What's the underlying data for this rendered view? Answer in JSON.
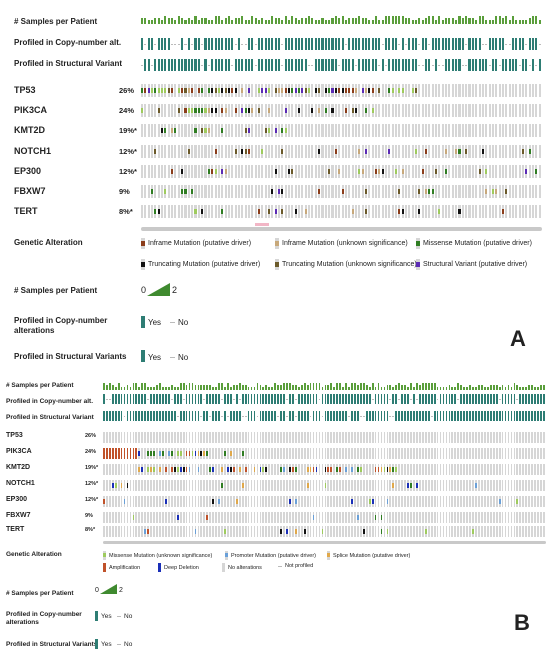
{
  "colors": {
    "profiled": "#2e7d74",
    "not_profiled": "#bbbbbb",
    "no_alteration": "#d6d6d6",
    "samples_bar": "#5a9e3b",
    "missense_driver": "#2f7d22",
    "missense_unknown": "#9ecb5d",
    "truncating_driver": "#111111",
    "truncating_unknown": "#6b5a2a",
    "inframe_driver": "#8b3d1a",
    "inframe_unknown": "#c7a87a",
    "structural_variant": "#5b2bb5",
    "amplification": "#c0522a",
    "deep_deletion": "#1a2fb8",
    "promoter": "#6aa0d8",
    "splice": "#e0a84a"
  },
  "panelA": {
    "letter": "A",
    "track_labels": {
      "samples": "# Samples per Patient",
      "copy_number": "Profiled in Copy-number alt.",
      "structural": "Profiled in Structural Variant"
    },
    "genes": [
      {
        "name": "TP53",
        "pct": "26%"
      },
      {
        "name": "PIK3CA",
        "pct": "24%"
      },
      {
        "name": "KMT2D",
        "pct": "19%*"
      },
      {
        "name": "NOTCH1",
        "pct": "12%*"
      },
      {
        "name": "EP300",
        "pct": "12%*"
      },
      {
        "name": "FBXW7",
        "pct": "9%"
      },
      {
        "name": "TERT",
        "pct": "8%*"
      }
    ],
    "legend": {
      "genetic_alteration_title": "Genetic Alteration",
      "items": [
        {
          "label": "Inframe Mutation (putative driver)",
          "icon": "inframe-driver-icon"
        },
        {
          "label": "Inframe Mutation (unknown significance)",
          "icon": "inframe-unknown-icon"
        },
        {
          "label": "Missense Mutation (putative driver)",
          "icon": "missense-driver-icon"
        },
        {
          "label": "Truncating Mutation (putative driver)",
          "icon": "truncating-driver-icon"
        },
        {
          "label": "Truncating Mutation (unknown significance)",
          "icon": "truncating-unknown-icon"
        },
        {
          "label": "Structural Variant (putative driver)",
          "icon": "structural-variant-icon"
        }
      ],
      "samples_title": "# Samples per Patient",
      "samples_min": "0",
      "samples_max": "2",
      "copy_number_title_1": "Profiled in Copy-number",
      "copy_number_title_2": "alterations",
      "structural_title": "Profiled in Structural Variants",
      "yes": "Yes",
      "no": "No"
    }
  },
  "panelB": {
    "letter": "B",
    "track_labels": {
      "samples": "# Samples per Patient",
      "copy_number": "Profiled in Copy-number alt.",
      "structural": "Profiled in Structural Variant"
    },
    "genes": [
      {
        "name": "TP53",
        "pct": "26%"
      },
      {
        "name": "PIK3CA",
        "pct": "24%"
      },
      {
        "name": "KMT2D",
        "pct": "19%*"
      },
      {
        "name": "NOTCH1",
        "pct": "12%*"
      },
      {
        "name": "EP300",
        "pct": "12%*"
      },
      {
        "name": "FBXW7",
        "pct": "9%"
      },
      {
        "name": "TERT",
        "pct": "8%*"
      }
    ],
    "legend": {
      "genetic_alteration_title": "Genetic Alteration",
      "items": [
        {
          "label": "Missense Mutation (unknown significance)",
          "icon": "missense-unknown-icon"
        },
        {
          "label": "Promoter Mutation (putative driver)",
          "icon": "promoter-icon"
        },
        {
          "label": "Splice Mutation (putative driver)",
          "icon": "splice-icon"
        },
        {
          "label": "Amplification",
          "icon": "amplification-icon"
        },
        {
          "label": "Deep Deletion",
          "icon": "deep-deletion-icon"
        },
        {
          "label": "No alterations",
          "icon": "no-alteration-icon"
        },
        {
          "label": "Not profiled",
          "icon": "not-profiled-icon"
        }
      ],
      "samples_title": "# Samples per Patient",
      "samples_min": "0",
      "samples_max": "2",
      "copy_number_title_1": "Profiled in Copy-number",
      "copy_number_title_2": "alterations",
      "structural_title": "Profiled in Structural Variants",
      "yes": "Yes",
      "no": "No"
    }
  }
}
